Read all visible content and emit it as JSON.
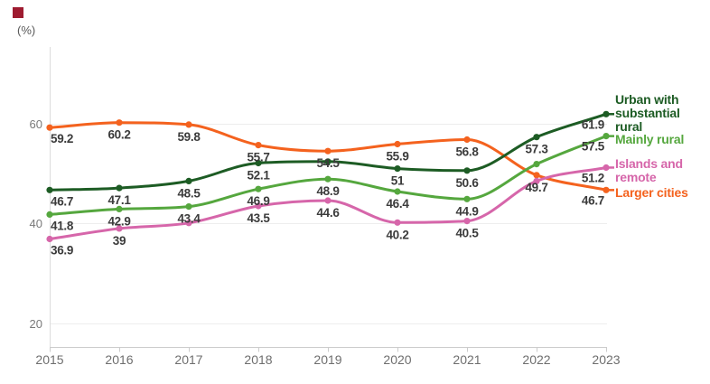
{
  "brand_mark": {
    "color": "#9e1b30"
  },
  "unit_label": "(%)",
  "axis": {
    "y_tick_labels": [
      "60",
      "40",
      "20"
    ],
    "y_tick_values": [
      60,
      40,
      20
    ],
    "x_tick_labels": [
      "2015",
      "2016",
      "2017",
      "2018",
      "2019",
      "2020",
      "2021",
      "2022",
      "2023"
    ]
  },
  "legend": {
    "position": "right",
    "items": [
      {
        "label": "Urban with substantial rural",
        "color": "#1d5c24"
      },
      {
        "label": "Mainly rural",
        "color": "#55a73e"
      },
      {
        "label": "Islands and remote",
        "color": "#d666aa"
      },
      {
        "label": "Larger cities",
        "color": "#f4621e"
      }
    ]
  },
  "chart_data": {
    "type": "line",
    "x": [
      2015,
      2016,
      2017,
      2018,
      2019,
      2020,
      2021,
      2022,
      2023
    ],
    "ylabel": "(%)",
    "ylim": [
      20,
      66
    ],
    "grid": true,
    "legend_position": "right",
    "line_style": "smooth",
    "series": [
      {
        "name": "Larger cities",
        "color": "#f4621e",
        "values": [
          59.2,
          60.2,
          59.8,
          55.7,
          54.5,
          55.9,
          56.8,
          49.7,
          46.7
        ],
        "labels": [
          "59.2",
          "60.2",
          "59.8",
          "55.7",
          "54.5",
          "55.9",
          "56.8",
          "49.7",
          "46.7"
        ]
      },
      {
        "name": "Urban with substantial rural",
        "color": "#1d5c24",
        "values": [
          46.7,
          47.1,
          48.5,
          52.1,
          52.4,
          51,
          50.6,
          57.3,
          61.9
        ],
        "labels": [
          "46.7",
          "47.1",
          "48.5",
          "52.1",
          "",
          "51",
          "50.6",
          "57.3",
          "61.9"
        ]
      },
      {
        "name": "Mainly rural",
        "color": "#55a73e",
        "values": [
          41.8,
          42.9,
          43.4,
          46.9,
          48.9,
          46.4,
          44.9,
          51.9,
          57.5
        ],
        "labels": [
          "41.8",
          "42.9",
          "43.4",
          "46.9",
          "48.9",
          "46.4",
          "44.9",
          "",
          "57.5"
        ]
      },
      {
        "name": "Islands and remote",
        "color": "#d666aa",
        "values": [
          36.9,
          39,
          40.1,
          43.5,
          44.6,
          40.2,
          40.5,
          48.5,
          51.2
        ],
        "labels": [
          "36.9",
          "39",
          "",
          "43.5",
          "44.6",
          "40.2",
          "40.5",
          "",
          "51.2"
        ]
      }
    ]
  }
}
